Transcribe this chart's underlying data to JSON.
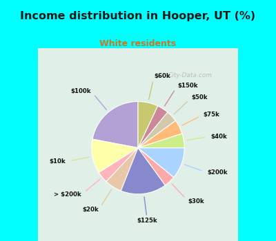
{
  "title": "Income distribution in Hooper, UT (%)",
  "subtitle": "White residents",
  "title_color": "#1a1a1a",
  "subtitle_color": "#cc7722",
  "bg_cyan": "#00ffff",
  "bg_chart": "#e0f0e8",
  "watermark": "City-Data.com",
  "labels": [
    "$100k",
    "$10k",
    "> $200k",
    "$20k",
    "$125k",
    "$30k",
    "$200k",
    "$40k",
    "$75k",
    "$50k",
    "$150k",
    "$60k"
  ],
  "values": [
    22,
    12,
    4,
    6,
    16,
    4,
    11,
    5,
    5,
    4,
    4,
    7
  ],
  "colors": [
    "#b3a0d4",
    "#ffffaa",
    "#ffb3ba",
    "#e8c8a8",
    "#8888cc",
    "#ffaaaa",
    "#aad4ff",
    "#ccee88",
    "#ffbb77",
    "#d4c8aa",
    "#cc8899",
    "#c8c870"
  ],
  "line_colors": [
    "#b3a0d4",
    "#dddd99",
    "#ffb3ba",
    "#e8c8a8",
    "#8888cc",
    "#ffaaaa",
    "#aad4ff",
    "#ccee88",
    "#ffbb77",
    "#d4c8aa",
    "#cc8899",
    "#c8c870"
  ],
  "startangle": 90,
  "figsize": [
    4.0,
    3.5
  ],
  "dpi": 100
}
